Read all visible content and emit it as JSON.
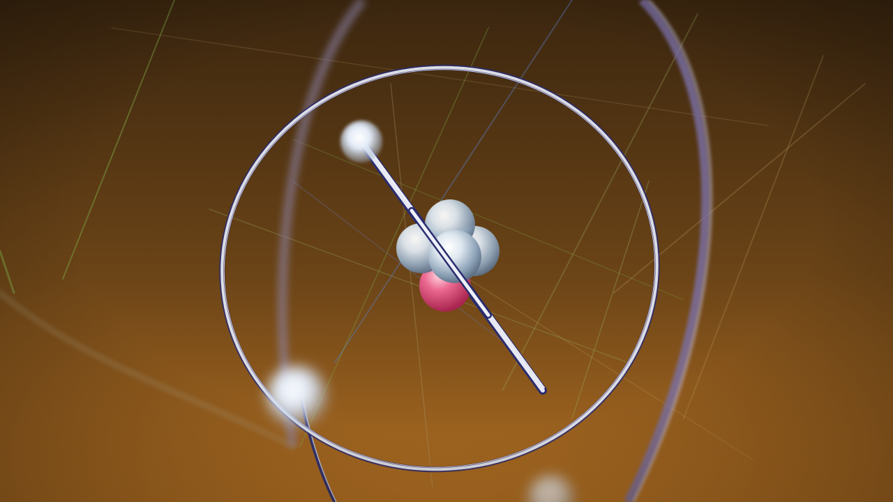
{
  "scene": {
    "subject": "atom-model",
    "palette": {
      "background_top": "#3b260f",
      "background_mid": "#6b4417",
      "background_bottom": "#b06e22",
      "orbit_ring": "#dcdde6",
      "orbit_ring_shadow": "#2a2c6e",
      "far_ring": "#7a70a8",
      "electron": "#e8eef8",
      "neutron": "#c8d6e4",
      "proton": "#e2507a",
      "streak_green": "#7fae4a",
      "streak_blue": "#5a78b0"
    },
    "nucleus": {
      "neutron_count": 4,
      "proton_count": 1
    },
    "electron_count": 3
  }
}
